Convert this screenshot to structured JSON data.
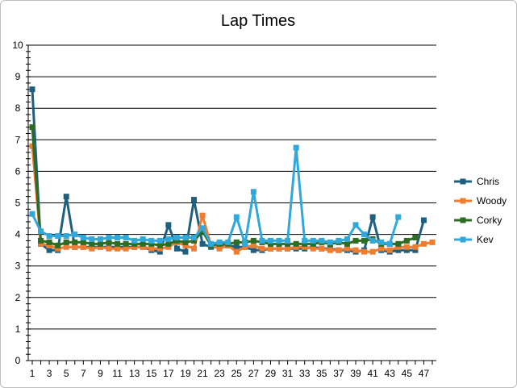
{
  "chart_data": {
    "type": "line",
    "title": "Lap Times",
    "xlabel": "",
    "ylabel": "",
    "ylim": [
      0,
      10
    ],
    "y_ticks": [
      0,
      1,
      2,
      3,
      4,
      5,
      6,
      7,
      8,
      9,
      10
    ],
    "x_ticks": [
      1,
      3,
      5,
      7,
      9,
      11,
      13,
      15,
      17,
      19,
      21,
      23,
      25,
      27,
      29,
      31,
      33,
      35,
      37,
      39,
      41,
      43,
      45,
      47
    ],
    "xlim": [
      1,
      48
    ],
    "grid": "horizontal",
    "legend_position": "right",
    "markers": "square",
    "series": [
      {
        "name": "Chris",
        "color": "#1f5f7f",
        "x": [
          1,
          2,
          3,
          4,
          5,
          6,
          7,
          8,
          9,
          10,
          11,
          12,
          13,
          14,
          15,
          16,
          17,
          18,
          19,
          20,
          21,
          22,
          23,
          24,
          25,
          26,
          27,
          28,
          29,
          30,
          31,
          32,
          33,
          34,
          35,
          36,
          37,
          38,
          39,
          40,
          41,
          42,
          43,
          44,
          45,
          46,
          47
        ],
        "values": [
          8.6,
          3.7,
          3.5,
          3.5,
          5.2,
          3.6,
          3.6,
          3.6,
          3.6,
          3.6,
          3.6,
          3.6,
          3.6,
          3.6,
          3.5,
          3.45,
          4.3,
          3.55,
          3.45,
          5.1,
          3.7,
          3.6,
          3.6,
          3.65,
          3.6,
          3.6,
          3.5,
          3.5,
          3.55,
          3.55,
          3.55,
          3.55,
          3.55,
          3.6,
          3.55,
          3.55,
          3.5,
          3.5,
          3.45,
          3.5,
          4.55,
          3.5,
          3.45,
          3.5,
          3.5,
          3.5,
          4.45
        ]
      },
      {
        "name": "Woody",
        "color": "#ee7d31",
        "x": [
          1,
          2,
          3,
          4,
          5,
          6,
          7,
          8,
          9,
          10,
          11,
          12,
          13,
          14,
          15,
          16,
          17,
          18,
          19,
          20,
          21,
          22,
          23,
          24,
          25,
          26,
          27,
          28,
          29,
          30,
          31,
          32,
          33,
          34,
          35,
          36,
          37,
          38,
          39,
          40,
          41,
          42,
          43,
          44,
          45,
          46,
          47,
          48
        ],
        "values": [
          6.8,
          3.7,
          3.65,
          3.55,
          3.6,
          3.6,
          3.6,
          3.55,
          3.6,
          3.55,
          3.55,
          3.55,
          3.6,
          3.6,
          3.55,
          3.55,
          3.6,
          3.75,
          3.65,
          3.55,
          4.6,
          3.65,
          3.55,
          3.65,
          3.45,
          3.6,
          3.65,
          3.55,
          3.55,
          3.55,
          3.55,
          3.6,
          3.6,
          3.55,
          3.55,
          3.5,
          3.5,
          3.55,
          3.5,
          3.45,
          3.45,
          3.55,
          3.5,
          3.6,
          3.6,
          3.6,
          3.7,
          3.75
        ]
      },
      {
        "name": "Corky",
        "color": "#2e6c24",
        "x": [
          1,
          2,
          3,
          4,
          5,
          6,
          7,
          8,
          9,
          10,
          11,
          12,
          13,
          14,
          15,
          16,
          17,
          18,
          19,
          20,
          21,
          22,
          23,
          24,
          25,
          26,
          27,
          28,
          29,
          30,
          31,
          32,
          33,
          34,
          35,
          36,
          37,
          38,
          39,
          40,
          41,
          42,
          43,
          44,
          45,
          46
        ],
        "values": [
          7.4,
          3.8,
          3.75,
          3.65,
          3.75,
          3.75,
          3.75,
          3.7,
          3.7,
          3.75,
          3.7,
          3.7,
          3.7,
          3.7,
          3.7,
          3.65,
          3.7,
          3.8,
          3.75,
          3.8,
          4.1,
          3.65,
          3.7,
          3.7,
          3.75,
          3.75,
          3.8,
          3.75,
          3.7,
          3.7,
          3.7,
          3.7,
          3.7,
          3.7,
          3.75,
          3.7,
          3.75,
          3.7,
          3.8,
          3.8,
          3.85,
          3.7,
          3.7,
          3.7,
          3.8,
          3.9
        ]
      },
      {
        "name": "Kev",
        "color": "#30a8da",
        "x": [
          1,
          2,
          3,
          4,
          5,
          6,
          7,
          8,
          9,
          10,
          11,
          12,
          13,
          14,
          15,
          16,
          17,
          18,
          19,
          20,
          21,
          22,
          23,
          24,
          25,
          26,
          27,
          28,
          29,
          30,
          31,
          32,
          33,
          34,
          35,
          36,
          37,
          38,
          39,
          40,
          41,
          42,
          43,
          44
        ],
        "values": [
          4.65,
          4.1,
          3.95,
          3.95,
          3.95,
          4.0,
          3.9,
          3.85,
          3.85,
          3.9,
          3.9,
          3.9,
          3.8,
          3.85,
          3.8,
          3.8,
          3.85,
          3.9,
          3.9,
          3.9,
          4.2,
          3.7,
          3.75,
          3.75,
          4.55,
          3.7,
          5.35,
          3.8,
          3.8,
          3.8,
          3.8,
          6.75,
          3.8,
          3.8,
          3.8,
          3.75,
          3.8,
          3.85,
          4.3,
          4.0,
          3.8,
          3.75,
          3.7,
          4.55
        ]
      }
    ]
  }
}
